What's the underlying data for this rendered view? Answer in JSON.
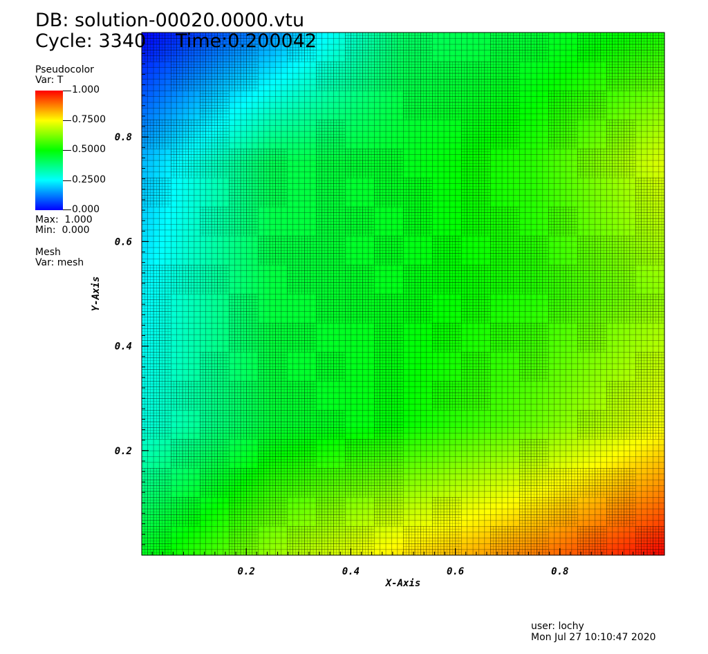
{
  "header": {
    "db_line": "DB: solution-00020.0000.vtu",
    "cycle_line": "Cycle: 3340     Time:0.200042"
  },
  "legend": {
    "plot_name": "Pseudocolor",
    "var_label": "Var: T",
    "max_label": "Max:  1.000",
    "min_label": "Min:  0.000",
    "colorbar_ticks": [
      "1.000",
      "0.7500",
      "0.5000",
      "0.2500",
      "0.000"
    ],
    "colormap": [
      "#0000ff",
      "#00ffff",
      "#00ff00",
      "#ffff00",
      "#ff0000"
    ],
    "mesh_name": "Mesh",
    "mesh_var_label": "Var: mesh"
  },
  "footer": {
    "user": "user: lochy",
    "timestamp": "Mon Jul 27 10:10:47 2020"
  },
  "chart_data": {
    "type": "heatmap",
    "title": "",
    "variable": "T",
    "xlabel": "X-Axis",
    "ylabel": "Y-Axis",
    "xlim": [
      0,
      1
    ],
    "ylim": [
      0,
      1
    ],
    "xticks": [
      "0.2",
      "0.4",
      "0.6",
      "0.8"
    ],
    "yticks": [
      "0.2",
      "0.4",
      "0.6",
      "0.8"
    ],
    "value_range": [
      0,
      1
    ],
    "mesh_overlay": true,
    "field_samples": {
      "x": [
        0,
        0.25,
        0.5,
        0.75,
        1
      ],
      "y": [
        0,
        0.25,
        0.5,
        0.75,
        1
      ],
      "T_rows_bottom_to_top": [
        [
          0.47,
          0.65,
          0.78,
          0.88,
          1.0
        ],
        [
          0.28,
          0.45,
          0.5,
          0.6,
          0.74
        ],
        [
          0.24,
          0.44,
          0.48,
          0.53,
          0.64
        ],
        [
          0.18,
          0.42,
          0.47,
          0.54,
          0.72
        ],
        [
          0.0,
          0.14,
          0.4,
          0.45,
          0.52
        ]
      ]
    }
  }
}
